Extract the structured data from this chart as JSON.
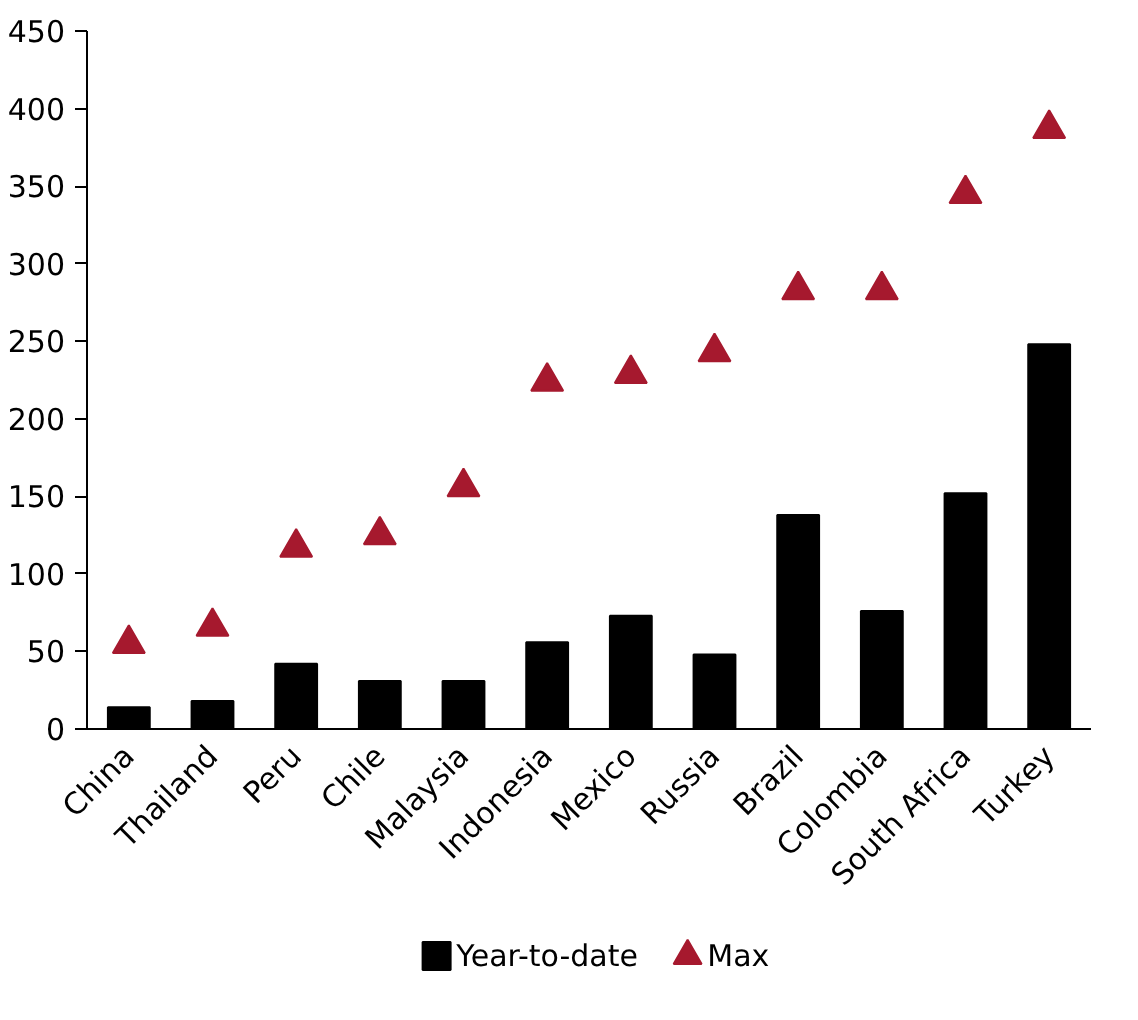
{
  "chart_data": {
    "type": "bar",
    "categories": [
      "China",
      "Thailand",
      "Peru",
      "Chile",
      "Malaysia",
      "Indonesia",
      "Mexico",
      "Russia",
      "Brazil",
      "Colombia",
      "South Africa",
      "Turkey"
    ],
    "series": [
      {
        "name": "Year-to-date",
        "color": "#000000",
        "values": [
          14,
          18,
          42,
          31,
          31,
          56,
          73,
          48,
          138,
          76,
          152,
          248
        ]
      },
      {
        "name": "Max",
        "type": "scatter",
        "color": "#a6192e",
        "values": [
          55,
          66,
          117,
          125,
          156,
          224,
          229,
          243,
          283,
          283,
          345,
          387
        ]
      }
    ],
    "marker": "triangle",
    "ylim": [
      0,
      450
    ],
    "yticks": [
      0,
      50,
      100,
      150,
      200,
      250,
      300,
      350,
      400,
      450
    ],
    "grid": false,
    "legend": "bottom"
  }
}
